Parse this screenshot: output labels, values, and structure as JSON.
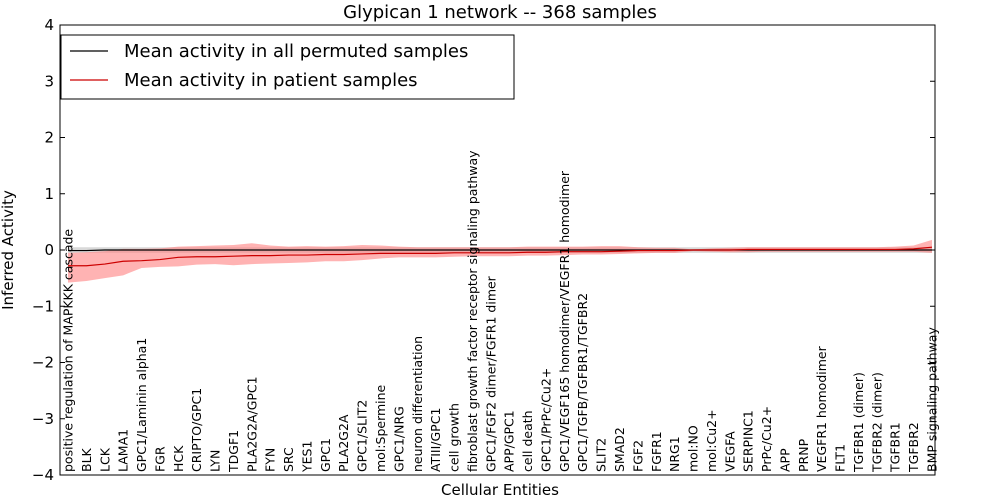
{
  "chart_data": {
    "type": "line",
    "title": "Glypican 1 network -- 368 samples",
    "xlabel": "Cellular Entities",
    "ylabel": "Inferred Activity",
    "ylim": [
      -4,
      4
    ],
    "yticks": [
      -4,
      -3,
      -2,
      -1,
      0,
      1,
      2,
      3,
      4
    ],
    "grid": false,
    "legend_position": "top-left",
    "categories": [
      "positive regulation of MAPKKK cascade",
      "BLK",
      "LCK",
      "LAMA1",
      "GPC1/Laminin alpha1",
      "FGR",
      "HCK",
      "CRIPTO/GPC1",
      "LYN",
      "TDGF1",
      "PLA2G2A/GPC1",
      "FYN",
      "SRC",
      "YES1",
      "GPC1",
      "PLA2G2A",
      "GPC1/SLIT2",
      "mol:Spermine",
      "GPC1/NRG",
      "neuron differentiation",
      "ATIII/GPC1",
      "cell growth",
      "fibroblast growth factor receptor signaling pathway",
      "GPC1/FGF2 dimer/FGFR1 dimer",
      "APP/GPC1",
      "cell death",
      "GPC1/PrPc/Cu2+",
      "GPC1/VEGF165 homodimer/VEGFR1 homodimer",
      "GPC1/TGFB/TGFBR1/TGFBR2",
      "SLIT2",
      "SMAD2",
      "FGF2",
      "FGFR1",
      "NRG1",
      "mol:NO",
      "mol:Cu2+",
      "VEGFA",
      "SERPINC1",
      "PrPc/Cu2+",
      "APP",
      "PRNP",
      "VEGFR1 homodimer",
      "FLT1",
      "TGFBR1 (dimer)",
      "TGFBR2 (dimer)",
      "TGFBR1",
      "TGFBR2",
      "BMP signaling pathway"
    ],
    "series": [
      {
        "name": "Mean activity in all permuted samples",
        "color": "#000000",
        "values": [
          -0.01,
          -0.01,
          0.0,
          0.0,
          0.0,
          0.0,
          0.0,
          0.0,
          0.0,
          0.0,
          0.0,
          0.0,
          0.0,
          0.0,
          0.0,
          0.0,
          0.0,
          0.0,
          0.0,
          0.0,
          0.0,
          0.0,
          0.0,
          0.0,
          0.0,
          0.0,
          0.0,
          0.0,
          0.0,
          0.0,
          0.0,
          0.0,
          0.0,
          0.0,
          0.0,
          0.0,
          0.0,
          0.0,
          0.0,
          0.0,
          0.0,
          0.0,
          0.0,
          0.0,
          0.0,
          0.0,
          0.0,
          0.0
        ],
        "band_low": [
          -0.05,
          -0.05,
          -0.05,
          -0.05,
          -0.05,
          -0.05,
          -0.05,
          -0.05,
          -0.05,
          -0.05,
          -0.05,
          -0.05,
          -0.05,
          -0.05,
          -0.05,
          -0.05,
          -0.05,
          -0.05,
          -0.05,
          -0.05,
          -0.05,
          -0.05,
          -0.05,
          -0.05,
          -0.05,
          -0.05,
          -0.05,
          -0.05,
          -0.05,
          -0.05,
          -0.05,
          -0.05,
          -0.05,
          -0.05,
          -0.05,
          -0.05,
          -0.05,
          -0.05,
          -0.05,
          -0.05,
          -0.05,
          -0.05,
          -0.05,
          -0.05,
          -0.05,
          -0.05,
          -0.05,
          -0.05
        ],
        "band_high": [
          0.05,
          0.05,
          0.05,
          0.05,
          0.05,
          0.05,
          0.05,
          0.05,
          0.05,
          0.05,
          0.05,
          0.05,
          0.05,
          0.05,
          0.05,
          0.05,
          0.05,
          0.05,
          0.05,
          0.05,
          0.05,
          0.05,
          0.05,
          0.05,
          0.05,
          0.05,
          0.05,
          0.05,
          0.05,
          0.05,
          0.05,
          0.05,
          0.05,
          0.05,
          0.05,
          0.05,
          0.05,
          0.05,
          0.05,
          0.05,
          0.05,
          0.05,
          0.05,
          0.05,
          0.05,
          0.05,
          0.05,
          0.05
        ],
        "band_color": "#aaaaaa"
      },
      {
        "name": "Mean activity in patient samples",
        "color": "#cc0000",
        "values": [
          -0.28,
          -0.28,
          -0.25,
          -0.2,
          -0.19,
          -0.17,
          -0.13,
          -0.12,
          -0.12,
          -0.11,
          -0.1,
          -0.1,
          -0.09,
          -0.09,
          -0.08,
          -0.08,
          -0.07,
          -0.06,
          -0.06,
          -0.06,
          -0.06,
          -0.05,
          -0.05,
          -0.05,
          -0.05,
          -0.04,
          -0.04,
          -0.03,
          -0.03,
          -0.03,
          -0.02,
          -0.01,
          -0.01,
          -0.01,
          0.0,
          0.0,
          0.0,
          0.01,
          0.01,
          0.01,
          0.01,
          0.01,
          0.01,
          0.01,
          0.01,
          0.01,
          0.02,
          0.05
        ],
        "band_low": [
          -0.58,
          -0.55,
          -0.5,
          -0.45,
          -0.32,
          -0.3,
          -0.29,
          -0.26,
          -0.25,
          -0.27,
          -0.25,
          -0.24,
          -0.23,
          -0.22,
          -0.2,
          -0.2,
          -0.18,
          -0.15,
          -0.13,
          -0.13,
          -0.13,
          -0.12,
          -0.11,
          -0.11,
          -0.11,
          -0.1,
          -0.1,
          -0.09,
          -0.08,
          -0.08,
          -0.07,
          -0.06,
          -0.05,
          -0.05,
          -0.02,
          -0.03,
          -0.04,
          -0.04,
          -0.03,
          -0.03,
          -0.03,
          -0.03,
          -0.03,
          -0.03,
          -0.03,
          -0.03,
          -0.03,
          -0.05
        ],
        "band_high": [
          -0.05,
          -0.04,
          -0.02,
          0.02,
          0.02,
          0.03,
          0.06,
          0.07,
          0.08,
          0.09,
          0.12,
          0.08,
          0.06,
          0.07,
          0.06,
          0.07,
          0.09,
          0.08,
          0.06,
          0.05,
          0.05,
          0.05,
          0.05,
          0.05,
          0.05,
          0.06,
          0.06,
          0.06,
          0.06,
          0.07,
          0.07,
          0.05,
          0.04,
          0.04,
          0.01,
          0.03,
          0.04,
          0.05,
          0.05,
          0.05,
          0.05,
          0.05,
          0.05,
          0.05,
          0.05,
          0.06,
          0.08,
          0.18
        ],
        "band_color": "#ff8080"
      }
    ]
  }
}
